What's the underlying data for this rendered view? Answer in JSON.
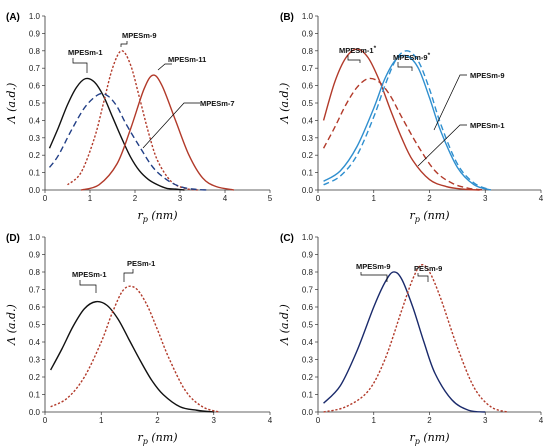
{
  "figure": {
    "panel_tags": [
      "(A)",
      "(B)",
      "(D)",
      "(C)"
    ],
    "ylabel": "Λ (a.d.)",
    "xlabel": "r_p (nm)",
    "colors": {
      "black": "#111111",
      "red": "#b23a2a",
      "navy": "#1a2a6b",
      "blue": "#2f8fcf",
      "darkblue": "#223f86",
      "leader": "#000000"
    }
  },
  "chart_data": [
    {
      "type": "line",
      "tag": "(A)",
      "xlim": [
        0,
        5
      ],
      "ylim": [
        0,
        1.0
      ],
      "xticks": [
        0,
        1,
        2,
        3,
        4,
        5
      ],
      "yticks": [
        0,
        0.1,
        0.2,
        0.3,
        0.4,
        0.5,
        0.6,
        0.7,
        0.8,
        0.9,
        1.0
      ],
      "grid": false,
      "series": [
        {
          "name": "MPESm-1",
          "x": [
            0.1,
            0.3,
            0.5,
            0.7,
            0.9,
            1.1,
            1.3,
            1.5,
            1.7,
            1.9,
            2.1,
            2.3,
            2.5,
            2.7,
            2.9,
            3.1
          ],
          "values": [
            0.24,
            0.36,
            0.49,
            0.59,
            0.64,
            0.62,
            0.54,
            0.42,
            0.3,
            0.19,
            0.11,
            0.06,
            0.03,
            0.01,
            0.005,
            0.0
          ],
          "color": "black",
          "dash": "solid",
          "label_pos": [
            0.9,
            0.64
          ]
        },
        {
          "name": "MPESm-9",
          "x": [
            0.5,
            0.8,
            1.1,
            1.3,
            1.5,
            1.7,
            1.9,
            2.1,
            2.3,
            2.5,
            2.8,
            3.1,
            3.4
          ],
          "values": [
            0.03,
            0.1,
            0.3,
            0.5,
            0.7,
            0.8,
            0.72,
            0.53,
            0.33,
            0.17,
            0.05,
            0.01,
            0.0
          ],
          "color": "red",
          "dash": "dotted",
          "label_pos": [
            1.7,
            0.8
          ]
        },
        {
          "name": "MPESm-11",
          "x": [
            0.8,
            1.2,
            1.6,
            1.9,
            2.2,
            2.4,
            2.6,
            2.9,
            3.2,
            3.5,
            3.8,
            4.2
          ],
          "values": [
            0.0,
            0.03,
            0.15,
            0.35,
            0.58,
            0.66,
            0.6,
            0.4,
            0.2,
            0.07,
            0.02,
            0.0
          ],
          "color": "red",
          "dash": "solid",
          "label_pos": [
            2.4,
            0.66
          ]
        },
        {
          "name": "MPESm-7",
          "x": [
            0.1,
            0.3,
            0.6,
            0.9,
            1.2,
            1.4,
            1.6,
            1.8,
            2.1,
            2.4,
            2.7,
            3.0,
            3.3,
            3.6
          ],
          "values": [
            0.13,
            0.2,
            0.35,
            0.48,
            0.55,
            0.54,
            0.48,
            0.38,
            0.25,
            0.13,
            0.06,
            0.02,
            0.005,
            0.0
          ],
          "color": "darkblue",
          "dash": "dashed",
          "label_pos": [
            2.2,
            0.24
          ]
        }
      ],
      "labels_displayed": [
        "MPESm-1",
        "MPESm-9",
        "MPESm-11",
        "MPESm-7"
      ]
    },
    {
      "type": "line",
      "tag": "(B)",
      "xlim": [
        0,
        4
      ],
      "ylim": [
        0,
        1.0
      ],
      "xticks": [
        0,
        1,
        2,
        3,
        4
      ],
      "yticks": [
        0,
        0.1,
        0.2,
        0.3,
        0.4,
        0.5,
        0.6,
        0.7,
        0.8,
        0.9,
        1.0
      ],
      "grid": false,
      "series": [
        {
          "name": "MPESm-1*",
          "x": [
            0.1,
            0.3,
            0.5,
            0.7,
            0.9,
            1.1,
            1.3,
            1.5,
            1.7,
            2.0,
            2.3,
            2.6,
            2.9
          ],
          "values": [
            0.4,
            0.62,
            0.76,
            0.81,
            0.76,
            0.63,
            0.46,
            0.3,
            0.17,
            0.06,
            0.02,
            0.005,
            0.0
          ],
          "color": "red",
          "dash": "solid",
          "label_pos": [
            0.7,
            0.81
          ]
        },
        {
          "name": "MPESm-1",
          "x": [
            0.1,
            0.3,
            0.5,
            0.7,
            0.9,
            1.1,
            1.3,
            1.5,
            1.8,
            2.1,
            2.4,
            2.7,
            3.0
          ],
          "values": [
            0.24,
            0.36,
            0.49,
            0.59,
            0.64,
            0.62,
            0.54,
            0.42,
            0.25,
            0.11,
            0.04,
            0.01,
            0.0
          ],
          "color": "red",
          "dash": "dashed",
          "label_pos": [
            1.9,
            0.35
          ]
        },
        {
          "name": "MPESm-9*",
          "x": [
            0.1,
            0.4,
            0.7,
            1.0,
            1.2,
            1.4,
            1.6,
            1.8,
            2.0,
            2.2,
            2.5,
            2.8,
            3.1
          ],
          "values": [
            0.03,
            0.08,
            0.2,
            0.42,
            0.6,
            0.75,
            0.8,
            0.74,
            0.58,
            0.38,
            0.15,
            0.04,
            0.0
          ],
          "color": "blue",
          "dash": "dashed",
          "label_pos": [
            1.65,
            0.79
          ]
        },
        {
          "name": "MPESm-9",
          "x": [
            0.1,
            0.4,
            0.7,
            1.0,
            1.2,
            1.4,
            1.6,
            1.8,
            2.0,
            2.2,
            2.5,
            2.8,
            3.1
          ],
          "values": [
            0.05,
            0.11,
            0.25,
            0.47,
            0.64,
            0.75,
            0.77,
            0.7,
            0.53,
            0.34,
            0.13,
            0.03,
            0.0
          ],
          "color": "blue",
          "dash": "solid",
          "label_pos": [
            1.9,
            0.6
          ]
        }
      ],
      "labels_displayed": [
        "MPESm-1*",
        "MPESm-9*",
        "MPESm-9",
        "MPESm-1"
      ]
    },
    {
      "type": "line",
      "tag": "(D)",
      "xlim": [
        0,
        4
      ],
      "ylim": [
        0,
        1.0
      ],
      "xticks": [
        0,
        1,
        2,
        3,
        4
      ],
      "yticks": [
        0,
        0.1,
        0.2,
        0.3,
        0.4,
        0.5,
        0.6,
        0.7,
        0.8,
        0.9,
        1.0
      ],
      "grid": false,
      "series": [
        {
          "name": "MPESm-1",
          "x": [
            0.1,
            0.3,
            0.5,
            0.7,
            0.9,
            1.1,
            1.3,
            1.5,
            1.7,
            1.9,
            2.1,
            2.4,
            2.7,
            3.0
          ],
          "values": [
            0.24,
            0.36,
            0.49,
            0.59,
            0.63,
            0.61,
            0.53,
            0.41,
            0.29,
            0.18,
            0.1,
            0.03,
            0.01,
            0.0
          ],
          "color": "black",
          "dash": "solid",
          "label_pos": [
            0.95,
            0.63
          ]
        },
        {
          "name": "PESm-1",
          "x": [
            0.1,
            0.4,
            0.7,
            1.0,
            1.2,
            1.4,
            1.6,
            1.8,
            2.0,
            2.2,
            2.5,
            2.8,
            3.1
          ],
          "values": [
            0.03,
            0.08,
            0.2,
            0.4,
            0.57,
            0.7,
            0.71,
            0.62,
            0.47,
            0.31,
            0.12,
            0.03,
            0.0
          ],
          "color": "red",
          "dash": "dotted",
          "label_pos": [
            1.55,
            0.72
          ]
        }
      ],
      "labels_displayed": [
        "MPESm-1",
        "PESm-1"
      ]
    },
    {
      "type": "line",
      "tag": "(C)",
      "xlim": [
        0,
        4
      ],
      "ylim": [
        0,
        1.0
      ],
      "xticks": [
        0,
        1,
        2,
        3,
        4
      ],
      "yticks": [
        0,
        0.1,
        0.2,
        0.3,
        0.4,
        0.5,
        0.6,
        0.7,
        0.8,
        0.9,
        1.0
      ],
      "grid": false,
      "series": [
        {
          "name": "MPESm-9",
          "x": [
            0.1,
            0.4,
            0.7,
            1.0,
            1.2,
            1.35,
            1.5,
            1.7,
            1.9,
            2.1,
            2.4,
            2.7,
            3.0
          ],
          "values": [
            0.05,
            0.15,
            0.35,
            0.6,
            0.74,
            0.8,
            0.76,
            0.6,
            0.4,
            0.22,
            0.07,
            0.01,
            0.0
          ],
          "color": "navy",
          "dash": "solid",
          "label_pos": [
            1.35,
            0.8
          ]
        },
        {
          "name": "PESm-9",
          "x": [
            0.1,
            0.5,
            0.9,
            1.2,
            1.5,
            1.7,
            1.85,
            2.0,
            2.2,
            2.5,
            2.8,
            3.1,
            3.4
          ],
          "values": [
            0.0,
            0.03,
            0.12,
            0.3,
            0.58,
            0.76,
            0.84,
            0.8,
            0.65,
            0.37,
            0.14,
            0.03,
            0.0
          ],
          "color": "red",
          "dash": "dotted",
          "label_pos": [
            1.85,
            0.84
          ]
        }
      ],
      "labels_displayed": [
        "MPESm-9",
        "PESm-9"
      ]
    }
  ]
}
